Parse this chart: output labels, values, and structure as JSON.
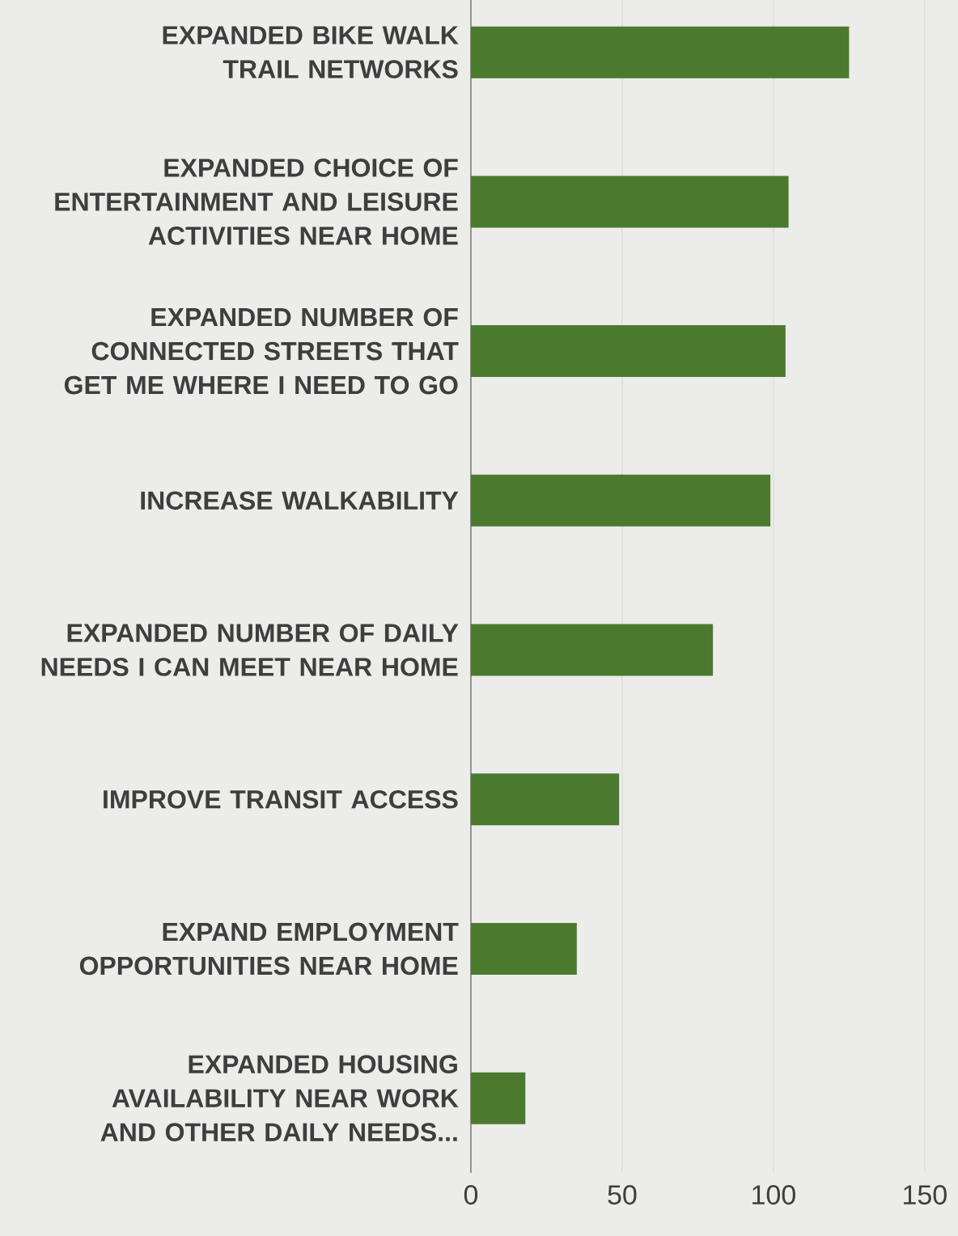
{
  "chart_data": {
    "type": "bar",
    "orientation": "horizontal",
    "categories": [
      "EXPANDED BIKE WALK TRAIL NETWORKS",
      "EXPANDED CHOICE OF ENTERTAINMENT AND LEISURE ACTIVITIES NEAR HOME",
      "EXPANDED NUMBER OF CONNECTED STREETS THAT GET ME WHERE I NEED TO GO",
      "INCREASE WALKABILITY",
      "EXPANDED NUMBER OF DAILY NEEDS I CAN MEET NEAR HOME",
      "IMPROVE TRANSIT ACCESS",
      "EXPAND EMPLOYMENT OPPORTUNITIES NEAR HOME",
      "EXPANDED HOUSING AVAILABILITY NEAR WORK AND OTHER DAILY NEEDS..."
    ],
    "values": [
      125,
      105,
      104,
      99,
      80,
      49,
      35,
      18
    ],
    "color": "#4b7a2f",
    "xlim": [
      0,
      161
    ],
    "xticks": [
      0,
      50,
      100,
      150
    ],
    "grid": "x"
  }
}
